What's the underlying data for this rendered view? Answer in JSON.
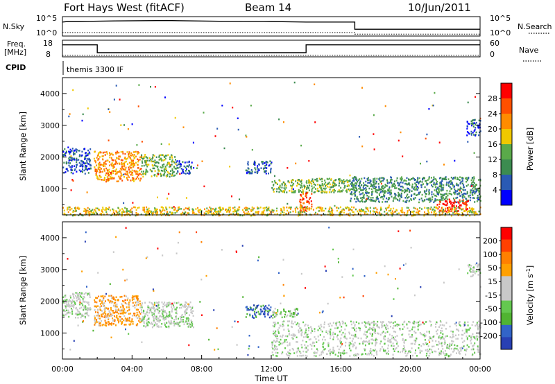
{
  "header": {
    "station": "Fort Hays West (fitACF)",
    "beam": "Beam 14",
    "date": "10/Jun/2011"
  },
  "control_panels": {
    "nsky_label": "N.Sky",
    "nsearch_label": "N.Search",
    "left_ticks": [
      "10^5",
      "10^0"
    ],
    "right_ticks": [
      "10^5",
      "10^0"
    ],
    "freq_label_1": "Freq.",
    "freq_label_2": "[MHz]",
    "freq_ticks": [
      "18",
      "8"
    ],
    "nave_label": "Nave",
    "nave_ticks": [
      "60",
      "0"
    ],
    "cpid_label": "CPID",
    "cpid_value": "themis 3300 IF"
  },
  "colors": {
    "power_scale": [
      "#0000ff",
      "#2a5ab4",
      "#3c8c50",
      "#5aaa4a",
      "#f0c800",
      "#ff8c00",
      "#ff5000",
      "#ff0000"
    ],
    "velocity_scale": [
      "#2840b4",
      "#3264c8",
      "#50b432",
      "#64c850",
      "#c8c8c8",
      "#c8c8c8",
      "#ffa000",
      "#ff8000",
      "#ff4000",
      "#ff0000"
    ]
  },
  "chart_data": [
    {
      "type": "heatmap",
      "name": "power",
      "ylabel": "Slant Range [km]",
      "xlabel": "Time UT",
      "xlim": [
        "00:00",
        "00:00"
      ],
      "ylim": [
        180,
        4500
      ],
      "x_ticks": [
        "00:00",
        "04:00",
        "08:00",
        "12:00",
        "16:00",
        "20:00",
        "00:00"
      ],
      "y_ticks": [
        1000,
        2000,
        3000,
        4000
      ],
      "colorbar_label": "Power [dB]",
      "colorbar_ticks": [
        "28",
        "24",
        "20",
        "16",
        "12",
        "8",
        "4"
      ],
      "regions": [
        {
          "t0": 0.0,
          "t1": 1.6,
          "r0": 1500,
          "r1": 2300,
          "level": 1
        },
        {
          "t0": 1.8,
          "t1": 4.5,
          "r0": 1250,
          "r1": 2200,
          "level": 5
        },
        {
          "t0": 4.5,
          "t1": 6.5,
          "r0": 1400,
          "r1": 2100,
          "level": 3
        },
        {
          "t0": 6.5,
          "t1": 7.5,
          "r0": 1500,
          "r1": 1900,
          "level": 1
        },
        {
          "t0": 10.5,
          "t1": 12.0,
          "r0": 1500,
          "r1": 1900,
          "level": 1
        },
        {
          "t0": 12.0,
          "t1": 16.5,
          "r0": 900,
          "r1": 1350,
          "level": 3
        },
        {
          "t0": 16.5,
          "t1": 24.0,
          "r0": 600,
          "r1": 1400,
          "level": 2
        },
        {
          "t0": 13.6,
          "t1": 14.3,
          "r0": 300,
          "r1": 900,
          "level": 6
        },
        {
          "t0": 21.5,
          "t1": 23.3,
          "r0": 300,
          "r1": 700,
          "level": 7
        },
        {
          "t0": 0.0,
          "t1": 24.0,
          "r0": 180,
          "r1": 450,
          "level": 4
        },
        {
          "t0": 23.2,
          "t1": 24.0,
          "r0": 2700,
          "r1": 3200,
          "level": 1
        }
      ]
    },
    {
      "type": "heatmap",
      "name": "velocity",
      "ylabel": "Slant Range [km]",
      "xlabel": "Time UT",
      "xlim": [
        "00:00",
        "00:00"
      ],
      "ylim": [
        180,
        4500
      ],
      "x_ticks": [
        "00:00",
        "04:00",
        "08:00",
        "12:00",
        "16:00",
        "20:00",
        "00:00"
      ],
      "y_ticks": [
        1000,
        2000,
        3000,
        4000
      ],
      "colorbar_label": "Velocity [m s",
      "colorbar_label_sup": "-1",
      "colorbar_label_end": "]",
      "colorbar_ticks": [
        "200",
        "100",
        "50",
        "15",
        "-15",
        "-50",
        "-100",
        "-200"
      ],
      "regions": [
        {
          "t0": 0.0,
          "t1": 1.6,
          "r0": 1500,
          "r1": 2300,
          "level": 4
        },
        {
          "t0": 1.8,
          "t1": 4.5,
          "r0": 1250,
          "r1": 2200,
          "level": 6
        },
        {
          "t0": 4.5,
          "t1": 7.5,
          "r0": 1200,
          "r1": 2000,
          "level": 4
        },
        {
          "t0": 10.5,
          "t1": 12.0,
          "r0": 1500,
          "r1": 1900,
          "level": 1
        },
        {
          "t0": 12.0,
          "t1": 13.5,
          "r0": 1500,
          "r1": 1800,
          "level": 3
        },
        {
          "t0": 12.0,
          "t1": 24.0,
          "r0": 300,
          "r1": 1400,
          "level": 4
        },
        {
          "t0": 23.2,
          "t1": 24.0,
          "r0": 2800,
          "r1": 3200,
          "level": 4
        }
      ]
    }
  ],
  "control_lines": {
    "nsky": [
      [
        0,
        0.72
      ],
      [
        0.3,
        0.75
      ],
      [
        1.0,
        0.75
      ],
      [
        3.0,
        0.78
      ],
      [
        6.0,
        0.8
      ],
      [
        9.0,
        0.76
      ],
      [
        12.0,
        0.75
      ],
      [
        14.0,
        0.72
      ],
      [
        16.8,
        0.72
      ],
      [
        16.8,
        0.35
      ],
      [
        24,
        0.35
      ]
    ],
    "nsearch": [
      [
        0,
        0.18
      ],
      [
        16.8,
        0.18
      ],
      [
        16.8,
        0.1
      ],
      [
        24,
        0.1
      ]
    ],
    "freq": [
      [
        0,
        0.72
      ],
      [
        2.0,
        0.72
      ],
      [
        2.0,
        0.25
      ],
      [
        14.0,
        0.25
      ],
      [
        14.0,
        0.72
      ],
      [
        24,
        0.72
      ]
    ],
    "nave": [
      [
        0,
        0.1
      ],
      [
        24,
        0.1
      ]
    ]
  }
}
